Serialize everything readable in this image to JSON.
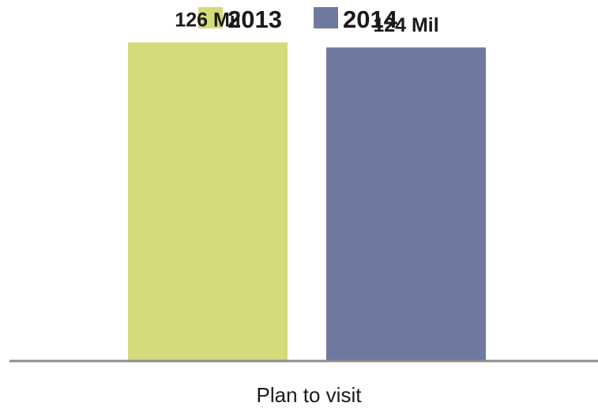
{
  "chart_data": {
    "type": "bar",
    "categories": [
      "Plan to visit"
    ],
    "series": [
      {
        "name": "2013",
        "values": [
          126
        ],
        "color": "#d5da7a",
        "label": "126 Mil"
      },
      {
        "name": "2014",
        "values": [
          124
        ],
        "color": "#6f79a0",
        "label": "124 Mil"
      }
    ],
    "unit": "Mil",
    "ylim": [
      0,
      140
    ],
    "grid": false,
    "legend_position": "top-center",
    "axis_color": "#8c8c8c"
  }
}
